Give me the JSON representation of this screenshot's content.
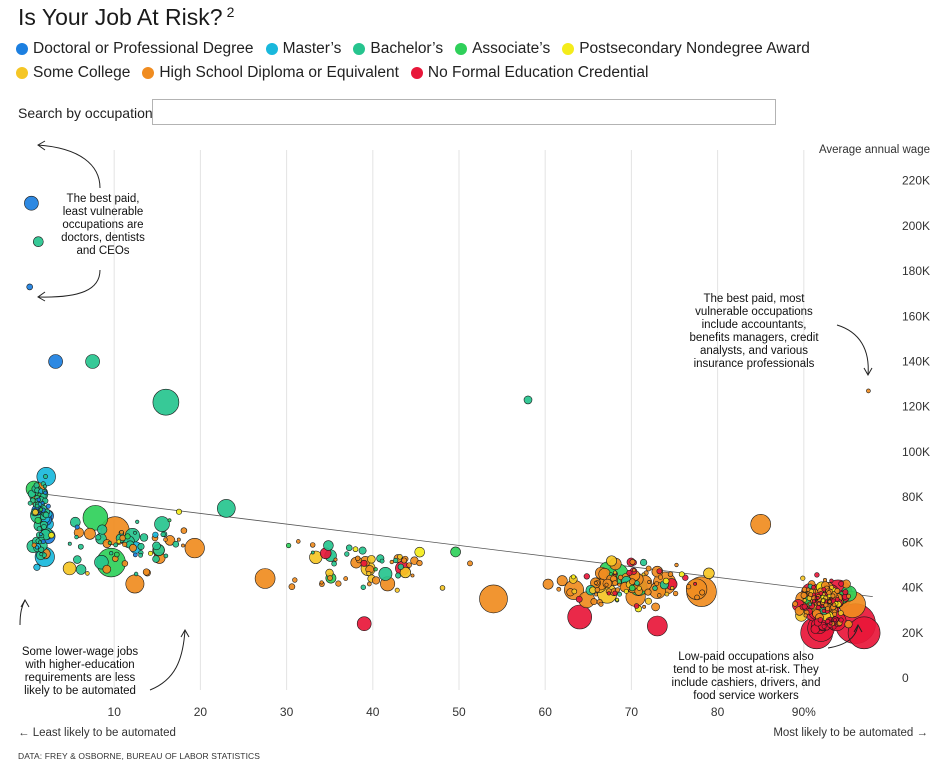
{
  "title": "Is Your Job At Risk?",
  "footnote_mark": "2",
  "legend": [
    {
      "label": "Doctoral or Professional Degree",
      "color": "#1c7fe0"
    },
    {
      "label": "Master’s",
      "color": "#19b8dc"
    },
    {
      "label": "Bachelor’s",
      "color": "#26c48e"
    },
    {
      "label": "Associate’s",
      "color": "#2fd05a"
    },
    {
      "label": "Postsecondary Nondegree Award",
      "color": "#f4ec1b"
    },
    {
      "label": "Some College",
      "color": "#f5c625"
    },
    {
      "label": "High School Diploma or Equivalent",
      "color": "#f08c20"
    },
    {
      "label": "No Formal Education Credential",
      "color": "#e8173a"
    }
  ],
  "search": {
    "label": "Search by occupation:",
    "value": "",
    "placeholder": ""
  },
  "source": "DATA: FREY & OSBORNE, BUREAU OF LABOR STATISTICS",
  "chart_data": {
    "type": "scatter",
    "ylabel": "Average annual wage",
    "xlabel_left": "← Least likely to be automated",
    "xlabel_right": "Most likely to be automated →",
    "x_range": [
      0,
      100
    ],
    "y_range": [
      0,
      230000
    ],
    "x_ticks": [
      10,
      20,
      30,
      40,
      50,
      60,
      70,
      80,
      90
    ],
    "x_tick_labels": [
      "10",
      "20",
      "30",
      "40",
      "50",
      "60",
      "70",
      "80",
      "90%"
    ],
    "y_ticks": [
      0,
      20000,
      40000,
      60000,
      80000,
      100000,
      120000,
      140000,
      160000,
      180000,
      200000,
      220000
    ],
    "y_tick_labels": [
      "0",
      "20K",
      "40K",
      "60K",
      "80K",
      "100K",
      "120K",
      "140K",
      "160K",
      "180K",
      "200K",
      "220K"
    ],
    "trend_line": [
      {
        "x": 0.5,
        "y": 82000
      },
      {
        "x": 98,
        "y": 36000
      }
    ],
    "annotations": [
      {
        "id": "best-paid-least",
        "lines": [
          "The best paid,",
          "least vulnerable",
          "occupations are",
          "doctors, dentists",
          "and CEOs"
        ]
      },
      {
        "id": "best-paid-most",
        "lines": [
          "The best paid, most",
          "vulnerable occupations",
          "include accountants,",
          "benefits managers, credit",
          "analysts, and various",
          "insurance professionals"
        ]
      },
      {
        "id": "lower-wage",
        "lines": [
          "Some lower-wage jobs",
          "with higher-education",
          "requirements are less",
          "likely to be automated"
        ]
      },
      {
        "id": "low-paid",
        "lines": [
          "Low-paid occupations also",
          "tend to be most at-risk. They",
          "include cashiers, drivers, and",
          "food service workers"
        ]
      }
    ],
    "notable_points": [
      {
        "x": 0.4,
        "y": 210000,
        "size": 7,
        "cat": 0
      },
      {
        "x": 1.2,
        "y": 193000,
        "size": 5,
        "cat": 2
      },
      {
        "x": 0.2,
        "y": 173000,
        "size": 3,
        "cat": 0
      },
      {
        "x": 16,
        "y": 122000,
        "size": 13,
        "cat": 2
      },
      {
        "x": 7.5,
        "y": 140000,
        "size": 7,
        "cat": 2
      },
      {
        "x": 3.2,
        "y": 140000,
        "size": 7,
        "cat": 0
      },
      {
        "x": 97.5,
        "y": 127000,
        "size": 2,
        "cat": 6
      },
      {
        "x": 58,
        "y": 123000,
        "size": 4,
        "cat": 2
      },
      {
        "x": 27.5,
        "y": 44000,
        "size": 10,
        "cat": 6
      },
      {
        "x": 54,
        "y": 35000,
        "size": 14,
        "cat": 6
      },
      {
        "x": 23,
        "y": 75000,
        "size": 9,
        "cat": 2
      },
      {
        "x": 85,
        "y": 68000,
        "size": 10,
        "cat": 6
      },
      {
        "x": 96,
        "y": 24000,
        "size": 20,
        "cat": 7
      },
      {
        "x": 97,
        "y": 20000,
        "size": 16,
        "cat": 7
      },
      {
        "x": 91.5,
        "y": 20000,
        "size": 16,
        "cat": 7
      },
      {
        "x": 64,
        "y": 27000,
        "size": 12,
        "cat": 7
      },
      {
        "x": 73,
        "y": 23000,
        "size": 10,
        "cat": 7
      },
      {
        "x": 39,
        "y": 24000,
        "size": 7,
        "cat": 7
      }
    ]
  }
}
